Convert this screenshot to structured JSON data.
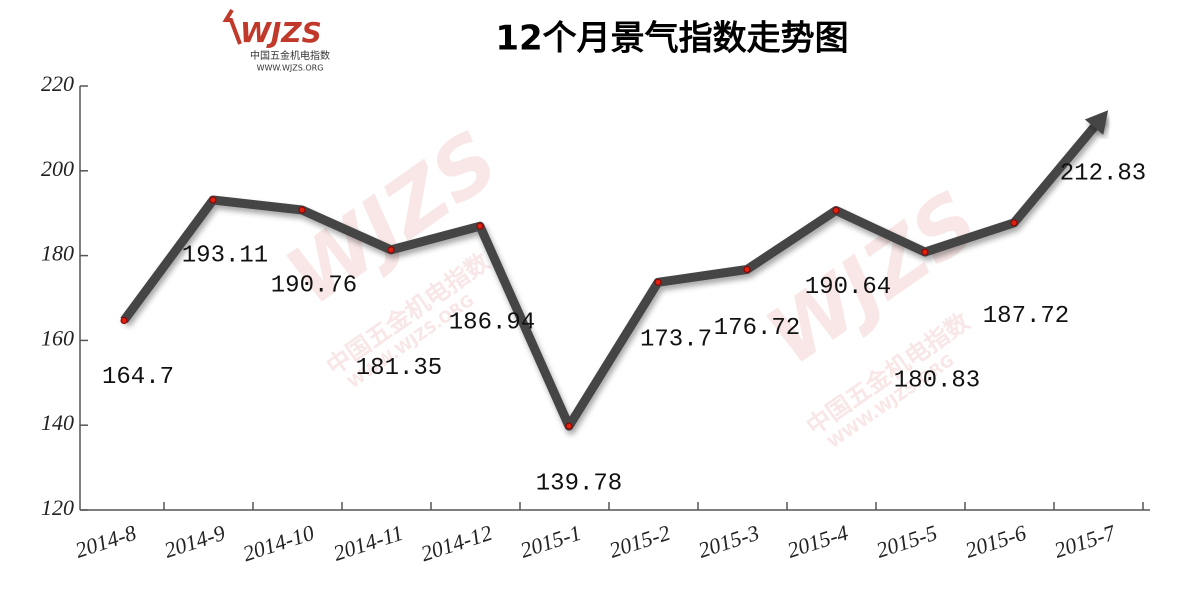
{
  "chart_data": {
    "type": "line",
    "title": "12个月景气指数走势图",
    "logo": {
      "mark": "WJZS",
      "name": "中国五金机电指数",
      "url": "WWW.WJZS.ORG"
    },
    "categories": [
      "2014-8",
      "2014-9",
      "2014-10",
      "2014-11",
      "2014-12",
      "2015-1",
      "2015-2",
      "2015-3",
      "2015-4",
      "2015-5",
      "2015-6",
      "2015-7"
    ],
    "series": [
      {
        "color": "#444444",
        "values": [
          164.7,
          193.11,
          190.76,
          181.35,
          186.94,
          139.78,
          173.7,
          176.72,
          190.64,
          180.83,
          187.72,
          212.83
        ]
      }
    ],
    "ylim": [
      120,
      220
    ],
    "yticks": [
      120,
      140,
      160,
      180,
      200,
      220
    ],
    "grid": false
  }
}
